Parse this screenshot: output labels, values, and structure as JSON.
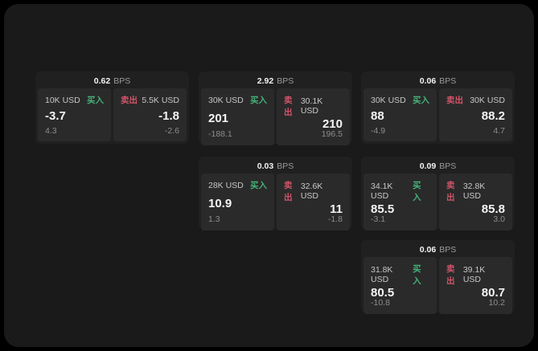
{
  "labels": {
    "bps_unit": "BPS",
    "buy": "买入",
    "sell": "卖出"
  },
  "colors": {
    "outer_bg": "#000000",
    "panel_bg": "#1a1a1a",
    "card_bg": "#202020",
    "tile_bg": "#2a2a2a",
    "buy_green": "#45b178",
    "sell_red": "#d05468"
  },
  "cards": [
    {
      "spread": "0.62",
      "buy": {
        "size": "10K USD",
        "price": "-3.7",
        "sub": "4.3"
      },
      "sell": {
        "size": "5.5K USD",
        "price": "-1.8",
        "sub": "-2.6"
      }
    },
    {
      "spread": "2.92",
      "buy": {
        "size": "30K USD",
        "price": "201",
        "sub": "-188.1"
      },
      "sell": {
        "size": "30.1K USD",
        "price": "210",
        "sub": "196.5"
      }
    },
    {
      "spread": "0.06",
      "buy": {
        "size": "30K USD",
        "price": "88",
        "sub": "-4.9"
      },
      "sell": {
        "size": "30K USD",
        "price": "88.2",
        "sub": "4.7"
      }
    },
    {
      "spread": "0.03",
      "buy": {
        "size": "28K USD",
        "price": "10.9",
        "sub": "1.3"
      },
      "sell": {
        "size": "32.6K USD",
        "price": "11",
        "sub": "-1.8"
      }
    },
    {
      "spread": "0.09",
      "buy": {
        "size": "34.1K USD",
        "price": "85.5",
        "sub": "-3.1"
      },
      "sell": {
        "size": "32.8K USD",
        "price": "85.8",
        "sub": "3.0"
      }
    },
    {
      "spread": "0.06",
      "buy": {
        "size": "31.8K USD",
        "price": "80.5",
        "sub": "-10.8"
      },
      "sell": {
        "size": "39.1K USD",
        "price": "80.7",
        "sub": "10.2"
      }
    }
  ]
}
